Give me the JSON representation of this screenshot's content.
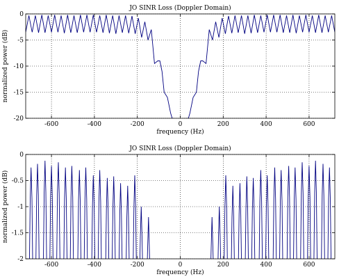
{
  "chart_data": [
    {
      "type": "line",
      "title": "JO SINR Loss (Doppler Domain)",
      "xlabel": "frequency (Hz)",
      "ylabel": "normalized power (dB)",
      "xlim": [
        -720,
        720
      ],
      "ylim": [
        -20,
        0
      ],
      "xticks": [
        -600,
        -400,
        -200,
        0,
        200,
        400,
        600
      ],
      "yticks": [
        0,
        -5,
        -10,
        -15,
        -20
      ],
      "grid": true,
      "line_color": "#000080",
      "series": [
        {
          "x": [
            -720,
            -705,
            -690,
            -675,
            -660,
            -645,
            -630,
            -615,
            -600,
            -585,
            -570,
            -555,
            -540,
            -525,
            -510,
            -495,
            -480,
            -465,
            -450,
            -435,
            -420,
            -405,
            -390,
            -375,
            -360,
            -345,
            -330,
            -315,
            -300,
            -285,
            -270,
            -255,
            -240,
            -225,
            -210,
            -195,
            -180,
            -165,
            -150,
            -135,
            -120,
            -105,
            -95,
            -85,
            -75,
            -60,
            -45,
            -38,
            -30,
            0,
            30,
            38,
            45,
            60,
            75,
            85,
            95,
            105,
            120,
            135,
            150,
            165,
            180,
            195,
            210,
            225,
            240,
            255,
            270,
            285,
            300,
            315,
            330,
            345,
            360,
            375,
            390,
            405,
            420,
            435,
            450,
            465,
            480,
            495,
            510,
            525,
            540,
            555,
            570,
            585,
            600,
            615,
            630,
            645,
            660,
            675,
            690,
            705,
            720
          ],
          "y": [
            -3.5,
            -0.3,
            -3.5,
            -0.3,
            -3.6,
            -0.2,
            -3.6,
            -0.3,
            -3.5,
            -0.2,
            -3.5,
            -0.3,
            -3.7,
            -0.2,
            -3.6,
            -0.3,
            -3.6,
            -0.2,
            -3.5,
            -0.2,
            -3.5,
            -0.2,
            -3.5,
            -0.3,
            -3.6,
            -0.2,
            -3.7,
            -0.3,
            -3.8,
            -0.3,
            -3.6,
            -0.3,
            -3.7,
            -0.4,
            -3.8,
            -0.8,
            -4.5,
            -1.5,
            -5.0,
            -3.0,
            -9.5,
            -9.0,
            -9.0,
            -11.0,
            -15.0,
            -16.0,
            -19.0,
            -20,
            -20,
            null,
            -20,
            -20,
            -19.0,
            -16.0,
            -15.0,
            -11.0,
            -9.0,
            -9.0,
            -9.5,
            -3.0,
            -5.0,
            -1.5,
            -4.5,
            -0.8,
            -3.8,
            -0.4,
            -3.7,
            -0.3,
            -3.6,
            -0.3,
            -3.8,
            -0.3,
            -3.7,
            -0.2,
            -3.6,
            -0.3,
            -3.5,
            -0.2,
            -3.5,
            -0.2,
            -3.5,
            -0.2,
            -3.6,
            -0.3,
            -3.6,
            -0.2,
            -3.7,
            -0.3,
            -3.5,
            -0.2,
            -3.5,
            -0.3,
            -3.6,
            -0.2,
            -3.6,
            -0.3,
            -3.5,
            -0.3,
            -3.5
          ]
        }
      ]
    },
    {
      "type": "line",
      "title": "JO SINR Loss (Doppler Domain)",
      "xlabel": "frequency (Hz)",
      "ylabel": "normalized power (dB)",
      "xlim": [
        -720,
        720
      ],
      "ylim": [
        -2,
        0
      ],
      "xticks": [
        -600,
        -400,
        -200,
        0,
        200,
        400,
        600
      ],
      "yticks": [
        0,
        -0.5,
        -1,
        -1.5,
        -2
      ],
      "ytick_labels": [
        "0",
        "-0.5",
        "-1",
        "-1.5",
        "-2"
      ],
      "grid": true,
      "line_color": "#000080",
      "series": [
        {
          "peaks_x": [
            -695,
            -665,
            -630,
            -600,
            -568,
            -535,
            -505,
            -470,
            -440,
            -405,
            -375,
            -340,
            -310,
            -278,
            -245,
            -212,
            -182,
            -148,
            148,
            182,
            212,
            245,
            278,
            310,
            340,
            375,
            405,
            440,
            470,
            505,
            535,
            568,
            600,
            630,
            665,
            695
          ],
          "peaks_y": [
            -0.25,
            -0.18,
            -0.12,
            -0.22,
            -0.15,
            -0.25,
            -0.22,
            -0.3,
            -0.25,
            -0.4,
            -0.3,
            -0.45,
            -0.42,
            -0.55,
            -0.6,
            -0.4,
            -1.0,
            -1.2,
            -1.2,
            -1.0,
            -0.4,
            -0.6,
            -0.55,
            -0.42,
            -0.45,
            -0.3,
            -0.4,
            -0.25,
            -0.3,
            -0.22,
            -0.25,
            -0.15,
            -0.22,
            -0.12,
            -0.18,
            -0.25
          ]
        }
      ]
    }
  ]
}
